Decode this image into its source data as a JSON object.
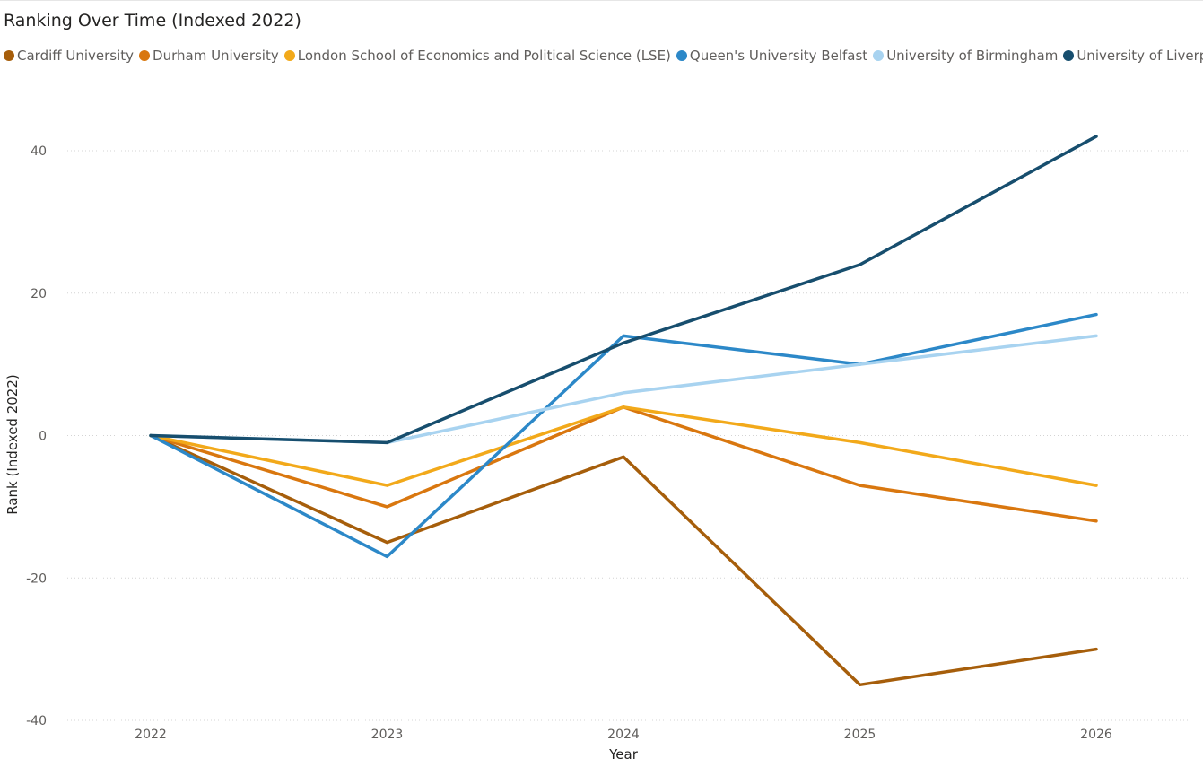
{
  "chart_data": {
    "type": "line",
    "title": "Ranking Over Time (Indexed 2022)",
    "xlabel": "Year",
    "ylabel": "Rank (Indexed 2022)",
    "categories": [
      "2022",
      "2023",
      "2024",
      "2025",
      "2026"
    ],
    "ylim": [
      -40,
      40
    ],
    "yticks": [
      40,
      20,
      0,
      -20,
      -40
    ],
    "grid": true,
    "legend_position": "top-left",
    "series": [
      {
        "name": "Cardiff University",
        "color": "#A65E0B",
        "values": [
          0,
          -15,
          -3,
          -35,
          -30
        ]
      },
      {
        "name": "Durham University",
        "color": "#D9770F",
        "values": [
          0,
          -10,
          4,
          -7,
          -12
        ]
      },
      {
        "name": "London School of Economics and Political Science (LSE)",
        "color": "#F2A91A",
        "values": [
          0,
          -7,
          4,
          -1,
          -7
        ]
      },
      {
        "name": "Queen's University Belfast",
        "color": "#2C88C8",
        "values": [
          0,
          -17,
          14,
          10,
          17
        ]
      },
      {
        "name": "University of Birmingham",
        "color": "#A8D3F0",
        "values": [
          0,
          -1,
          6,
          10,
          14
        ]
      },
      {
        "name": "University of Liverpool",
        "color": "#174E6E",
        "values": [
          0,
          -1,
          13,
          24,
          42
        ]
      }
    ]
  }
}
